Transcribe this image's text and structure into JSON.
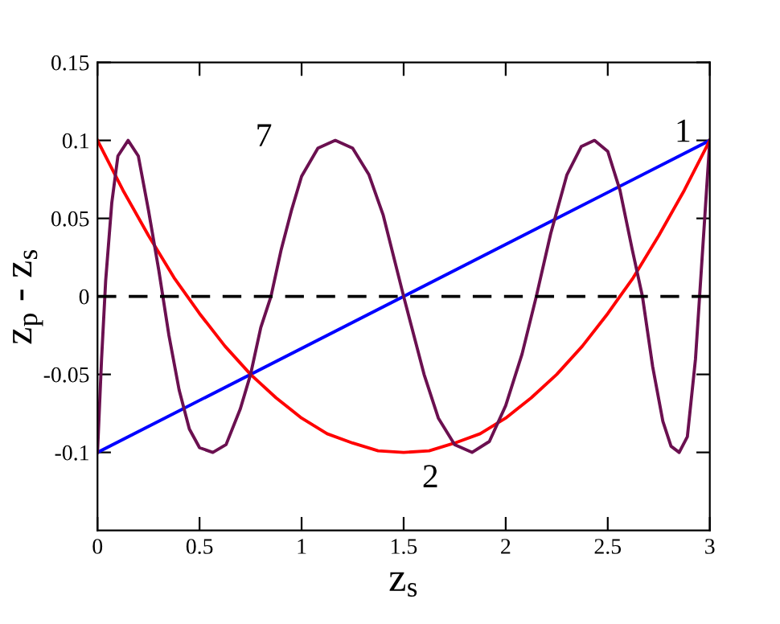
{
  "chart_data": {
    "type": "line",
    "xlabel": "z$_{s}$",
    "ylabel": "z$_{p}$ - z$_{s}$",
    "xlim": [
      0,
      3
    ],
    "ylim": [
      -0.15,
      0.15
    ],
    "xticks": [
      {
        "value": 0,
        "label": "0"
      },
      {
        "value": 0.5,
        "label": "0.5"
      },
      {
        "value": 1,
        "label": "1"
      },
      {
        "value": 1.5,
        "label": "1.5"
      },
      {
        "value": 2,
        "label": "2"
      },
      {
        "value": 2.5,
        "label": "2.5"
      },
      {
        "value": 3,
        "label": "3"
      }
    ],
    "yticks": [
      {
        "value": -0.1,
        "label": "-0.1"
      },
      {
        "value": -0.05,
        "label": "-0.05"
      },
      {
        "value": 0,
        "label": "0"
      },
      {
        "value": 0.05,
        "label": "0.05"
      },
      {
        "value": 0.1,
        "label": "0.1"
      },
      {
        "value": 0.15,
        "label": "0.15"
      }
    ],
    "grid": false,
    "marker": "none",
    "line_style": "solid",
    "series": [
      {
        "color": "#0000ff",
        "x": [
          0,
          3
        ],
        "values": [
          -0.1,
          0.1
        ]
      },
      {
        "color": "#ff0000",
        "x": [
          0,
          0.125,
          0.25,
          0.375,
          0.5,
          0.625,
          0.75,
          0.875,
          1,
          1.125,
          1.25,
          1.375,
          1.5,
          1.625,
          1.75,
          1.875,
          2,
          2.125,
          2.25,
          2.375,
          2.5,
          2.625,
          2.75,
          2.875,
          3
        ],
        "values": [
          0.1,
          0.068,
          0.039,
          0.012,
          -0.011,
          -0.032,
          -0.05,
          -0.065,
          -0.078,
          -0.088,
          -0.094,
          -0.099,
          -0.1,
          -0.099,
          -0.094,
          -0.088,
          -0.078,
          -0.065,
          -0.05,
          -0.032,
          -0.011,
          0.012,
          0.039,
          0.068,
          0.1
        ]
      },
      {
        "color": "#6b1050",
        "x": [
          0,
          0.02,
          0.04,
          0.07,
          0.1,
          0.15,
          0.2,
          0.25,
          0.3,
          0.35,
          0.4,
          0.45,
          0.5,
          0.565,
          0.63,
          0.7,
          0.75,
          0.8,
          0.85,
          0.9,
          0.95,
          1.0,
          1.08,
          1.165,
          1.25,
          1.33,
          1.4,
          1.5,
          1.6,
          1.67,
          1.75,
          1.835,
          1.92,
          2.0,
          2.08,
          2.15,
          2.22,
          2.3,
          2.37,
          2.435,
          2.5,
          2.56,
          2.62,
          2.67,
          2.72,
          2.77,
          2.81,
          2.85,
          2.89,
          2.93,
          2.96,
          3.0
        ],
        "values": [
          -0.1,
          -0.04,
          0.01,
          0.06,
          0.09,
          0.1,
          0.09,
          0.055,
          0.017,
          -0.025,
          -0.06,
          -0.085,
          -0.097,
          -0.1,
          -0.095,
          -0.072,
          -0.05,
          -0.02,
          0.0,
          0.03,
          0.055,
          0.077,
          0.095,
          0.1,
          0.095,
          0.078,
          0.052,
          0.0,
          -0.05,
          -0.078,
          -0.095,
          -0.1,
          -0.093,
          -0.07,
          -0.037,
          0.0,
          0.04,
          0.078,
          0.096,
          0.1,
          0.093,
          0.068,
          0.03,
          0.0,
          -0.045,
          -0.08,
          -0.096,
          -0.1,
          -0.09,
          -0.04,
          0.02,
          0.1
        ]
      }
    ],
    "ref_lines": [
      {
        "axis": "y",
        "value": 0,
        "color": "#000000",
        "line_style": "dashed"
      }
    ],
    "annotations": [
      {
        "text": "1",
        "x": 3,
        "y": 0.1
      },
      {
        "text": "7",
        "x": 1.165,
        "y": 0.1
      },
      {
        "text": "2",
        "x": 1.5,
        "y": -0.1
      }
    ]
  }
}
